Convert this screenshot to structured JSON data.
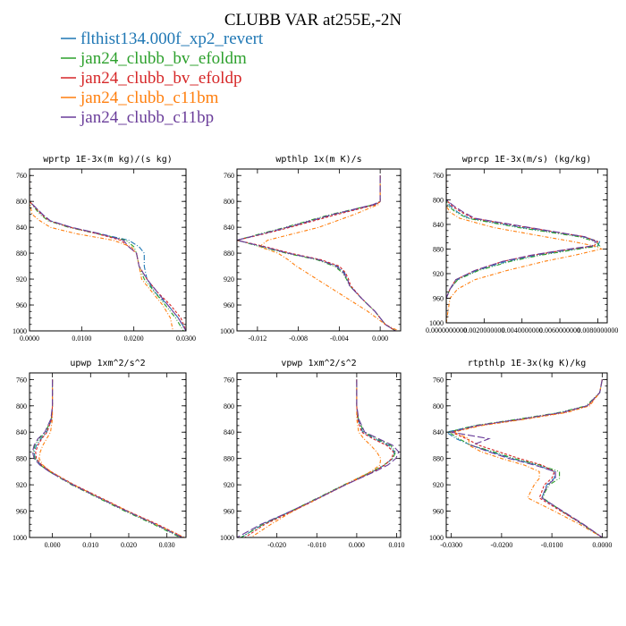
{
  "figure": {
    "title": "CLUBB VAR at255E,-2N"
  },
  "legend": [
    {
      "name": "flthist134.000f_xp2_revert",
      "color": "#1f77b4"
    },
    {
      "name": "jan24_clubb_bv_efoldm",
      "color": "#2ca02c"
    },
    {
      "name": "jan24_clubb_bv_efoldp",
      "color": "#d62728"
    },
    {
      "name": "jan24_clubb_c11bm",
      "color": "#ff7f0e"
    },
    {
      "name": "jan24_clubb_c11bp",
      "color": "#6a3d9a"
    }
  ],
  "chart_data": [
    {
      "type": "line",
      "title": "wprtp  1E-3x(m kg)/(s kg)",
      "xlabel": "",
      "ylabel": "",
      "xlim": [
        0,
        0.03
      ],
      "ylim": [
        1000,
        750
      ],
      "yticks": [
        760,
        800,
        840,
        880,
        920,
        960,
        1000
      ],
      "xticks": [
        0,
        0.01,
        0.02,
        0.03
      ],
      "xtick_labels": [
        "0.0000",
        "0.0100",
        "0.0200",
        "0.0300"
      ],
      "y": [
        760,
        800,
        820,
        830,
        840,
        850,
        860,
        870,
        880,
        900,
        920,
        940,
        960,
        980,
        1000
      ],
      "series": [
        {
          "name": "flthist134.000f_xp2_revert",
          "values": [
            0,
            0,
            0.0025,
            0.004,
            0.008,
            0.0135,
            0.019,
            0.021,
            0.022,
            0.022,
            0.0225,
            0.024,
            0.0265,
            0.0285,
            0.03
          ]
        },
        {
          "name": "jan24_clubb_bv_efoldm",
          "values": [
            0,
            0,
            0.002,
            0.0036,
            0.0075,
            0.013,
            0.0185,
            0.02,
            0.0205,
            0.021,
            0.022,
            0.024,
            0.026,
            0.028,
            0.0295
          ]
        },
        {
          "name": "jan24_clubb_bv_efoldp",
          "values": [
            0,
            0,
            0.0023,
            0.0038,
            0.0078,
            0.013,
            0.0175,
            0.019,
            0.0205,
            0.021,
            0.0225,
            0.0245,
            0.027,
            0.029,
            0.03
          ]
        },
        {
          "name": "jan24_clubb_c11bm",
          "values": [
            0,
            0,
            0.0005,
            0.002,
            0.004,
            0.009,
            0.016,
            0.0195,
            0.0205,
            0.021,
            0.0215,
            0.0235,
            0.0255,
            0.027,
            0.0275
          ]
        },
        {
          "name": "jan24_clubb_c11bp",
          "values": [
            0,
            0,
            0.0025,
            0.004,
            0.008,
            0.0135,
            0.018,
            0.019,
            0.0205,
            0.021,
            0.0225,
            0.0245,
            0.0265,
            0.0285,
            0.03
          ]
        }
      ]
    },
    {
      "type": "line",
      "title": "wpthlp  1x(m K)/s",
      "xlabel": "",
      "ylabel": "",
      "xlim": [
        -0.014,
        0.002
      ],
      "ylim": [
        1000,
        750
      ],
      "yticks": [
        760,
        800,
        840,
        880,
        920,
        960,
        1000
      ],
      "xticks": [
        -0.012,
        -0.008,
        -0.004,
        0.0
      ],
      "xtick_labels": [
        "-0.012",
        "-0.008",
        "-0.004",
        "0.000"
      ],
      "y": [
        760,
        800,
        805,
        820,
        840,
        850,
        860,
        870,
        880,
        890,
        900,
        910,
        920,
        930,
        950,
        970,
        990,
        1000
      ],
      "series": [
        {
          "name": "flthist134.000f_xp2_revert",
          "values": [
            0.0,
            0.0,
            -0.0005,
            -0.0045,
            -0.009,
            -0.0115,
            -0.014,
            -0.0115,
            -0.009,
            -0.006,
            -0.0042,
            -0.0035,
            -0.0032,
            -0.003,
            -0.0018,
            -0.0005,
            0.0005,
            0.0015
          ]
        },
        {
          "name": "jan24_clubb_bv_efoldm",
          "values": [
            0.0,
            0.0,
            -0.0006,
            -0.0048,
            -0.0093,
            -0.0117,
            -0.014,
            -0.0117,
            -0.0092,
            -0.0062,
            -0.0045,
            -0.0037,
            -0.0033,
            -0.003,
            -0.0018,
            -0.0005,
            0.0005,
            0.0015
          ]
        },
        {
          "name": "jan24_clubb_bv_efoldp",
          "values": [
            0.0,
            0.0,
            -0.0004,
            -0.0042,
            -0.0088,
            -0.0113,
            -0.014,
            -0.0112,
            -0.0088,
            -0.0058,
            -0.004,
            -0.0034,
            -0.0031,
            -0.0029,
            -0.0018,
            -0.0005,
            0.0005,
            0.0015
          ]
        },
        {
          "name": "jan24_clubb_c11bm",
          "values": [
            0.0,
            0.0,
            -0.0002,
            -0.0025,
            -0.006,
            -0.0085,
            -0.011,
            -0.0118,
            -0.01,
            -0.009,
            -0.0082,
            -0.0072,
            -0.0062,
            -0.0052,
            -0.0032,
            -0.0012,
            0.0005,
            0.0018
          ]
        },
        {
          "name": "jan24_clubb_c11bp",
          "values": [
            0.0,
            0.0,
            -0.0007,
            -0.0046,
            -0.0091,
            -0.0115,
            -0.014,
            -0.0114,
            -0.009,
            -0.006,
            -0.0043,
            -0.0036,
            -0.0032,
            -0.003,
            -0.0018,
            -0.0005,
            0.0005,
            0.0015
          ]
        }
      ]
    },
    {
      "type": "line",
      "title": "wprcp  1E-3x(m/s) (kg/kg)",
      "xlabel": "",
      "ylabel": "",
      "xlim": [
        0,
        0.0085
      ],
      "ylim": [
        1000,
        750
      ],
      "yticks": [
        760,
        800,
        840,
        880,
        920,
        960,
        1000
      ],
      "xticks": [
        0,
        0.002,
        0.004,
        0.006,
        0.008
      ],
      "xtick_labels": [
        "0.0000000000",
        "0.0020000000",
        "0.0040000000",
        "0.0060000000",
        "0.0080000000"
      ],
      "y": [
        760,
        800,
        810,
        820,
        830,
        845,
        860,
        868,
        875,
        880,
        890,
        900,
        915,
        930,
        945,
        960,
        1000
      ],
      "series": [
        {
          "name": "flthist134.000f_xp2_revert",
          "values": [
            0,
            0,
            0.0002,
            0.0006,
            0.0012,
            0.004,
            0.0072,
            0.0081,
            0.008,
            0.0068,
            0.0048,
            0.0032,
            0.0016,
            0.0006,
            0.0002,
            0,
            0
          ]
        },
        {
          "name": "jan24_clubb_bv_efoldm",
          "values": [
            0,
            0,
            0.0001,
            0.0005,
            0.0011,
            0.0038,
            0.007,
            0.0079,
            0.0081,
            0.007,
            0.005,
            0.0034,
            0.0017,
            0.0006,
            0.0002,
            0,
            0
          ]
        },
        {
          "name": "jan24_clubb_bv_efoldp",
          "values": [
            0,
            0,
            0.0003,
            0.0008,
            0.0014,
            0.0043,
            0.0073,
            0.008,
            0.0078,
            0.0066,
            0.0046,
            0.003,
            0.0015,
            0.0005,
            0.0002,
            0,
            0
          ]
        },
        {
          "name": "jan24_clubb_c11bm",
          "values": [
            0,
            0,
            0.0,
            0.0002,
            0.0007,
            0.0025,
            0.0052,
            0.0067,
            0.0078,
            0.0082,
            0.0068,
            0.0052,
            0.0032,
            0.0015,
            0.0006,
            0.0002,
            0
          ]
        },
        {
          "name": "jan24_clubb_c11bp",
          "values": [
            0,
            0,
            0.0004,
            0.0009,
            0.0015,
            0.0044,
            0.0073,
            0.0079,
            0.0077,
            0.0065,
            0.0045,
            0.003,
            0.0015,
            0.0005,
            0.0002,
            0,
            0
          ]
        }
      ]
    },
    {
      "type": "line",
      "title": "upwp  1xm^2/s^2",
      "xlabel": "",
      "ylabel": "",
      "xlim": [
        -0.006,
        0.035
      ],
      "ylim": [
        1000,
        750
      ],
      "yticks": [
        760,
        800,
        840,
        880,
        920,
        960,
        1000
      ],
      "xticks": [
        0,
        0.01,
        0.02,
        0.03
      ],
      "xtick_labels": [
        "0.000",
        "0.010",
        "0.020",
        "0.030"
      ],
      "y": [
        760,
        800,
        820,
        840,
        850,
        860,
        870,
        880,
        890,
        900,
        920,
        940,
        960,
        980,
        1000
      ],
      "series": [
        {
          "name": "flthist134.000f_xp2_revert",
          "values": [
            0,
            0,
            -0.0002,
            -0.0015,
            -0.003,
            -0.0042,
            -0.0048,
            -0.0045,
            -0.003,
            -0.0005,
            0.0055,
            0.0125,
            0.0195,
            0.027,
            0.034
          ]
        },
        {
          "name": "jan24_clubb_bv_efoldm",
          "values": [
            0,
            0,
            -0.0003,
            -0.0018,
            -0.0035,
            -0.0046,
            -0.005,
            -0.0046,
            -0.0032,
            -0.0008,
            0.005,
            0.012,
            0.019,
            0.0265,
            0.0335
          ]
        },
        {
          "name": "jan24_clubb_bv_efoldp",
          "values": [
            0,
            0,
            -0.0002,
            -0.0014,
            -0.0028,
            -0.0038,
            -0.0044,
            -0.0042,
            -0.0028,
            -0.0004,
            0.0057,
            0.0128,
            0.0198,
            0.0275,
            0.0345
          ]
        },
        {
          "name": "jan24_clubb_c11bm",
          "values": [
            0,
            0,
            0.0,
            -0.0005,
            -0.0015,
            -0.0025,
            -0.0032,
            -0.0035,
            -0.0025,
            -0.0004,
            0.0055,
            0.0125,
            0.0197,
            0.0272,
            0.0345
          ]
        },
        {
          "name": "jan24_clubb_c11bp",
          "values": [
            0,
            0,
            -0.0004,
            -0.002,
            -0.0038,
            -0.0048,
            -0.0052,
            -0.0048,
            -0.0033,
            -0.0008,
            0.0053,
            0.0123,
            0.0195,
            0.027,
            0.034
          ]
        }
      ]
    },
    {
      "type": "line",
      "title": "vpwp  1xm^2/s^2",
      "xlabel": "",
      "ylabel": "",
      "xlim": [
        -0.03,
        0.011
      ],
      "ylim": [
        1000,
        750
      ],
      "yticks": [
        760,
        800,
        840,
        880,
        920,
        960,
        1000
      ],
      "xticks": [
        -0.02,
        -0.01,
        0.0,
        0.01
      ],
      "xtick_labels": [
        "-0.020",
        "-0.010",
        "0.000",
        "0.010"
      ],
      "y": [
        760,
        800,
        820,
        840,
        850,
        860,
        870,
        880,
        890,
        900,
        920,
        940,
        960,
        980,
        1000
      ],
      "series": [
        {
          "name": "flthist134.000f_xp2_revert",
          "values": [
            0,
            0,
            0.0003,
            0.0015,
            0.0045,
            0.008,
            0.0095,
            0.009,
            0.007,
            0.004,
            -0.003,
            -0.0095,
            -0.0165,
            -0.0235,
            -0.029
          ]
        },
        {
          "name": "jan24_clubb_bv_efoldm",
          "values": [
            0,
            0,
            0.0004,
            0.0018,
            0.005,
            0.0085,
            0.0098,
            0.009,
            0.0068,
            0.0038,
            -0.0032,
            -0.0098,
            -0.0165,
            -0.0235,
            -0.029
          ]
        },
        {
          "name": "jan24_clubb_bv_efoldp",
          "values": [
            0,
            0,
            0.0002,
            0.0012,
            0.004,
            0.0075,
            0.0092,
            0.0088,
            0.007,
            0.0042,
            -0.0028,
            -0.0093,
            -0.016,
            -0.023,
            -0.028
          ]
        },
        {
          "name": "jan24_clubb_c11bm",
          "values": [
            0,
            0,
            0.0,
            0.0005,
            0.0018,
            0.0035,
            0.005,
            0.006,
            0.0058,
            0.0035,
            -0.003,
            -0.0095,
            -0.016,
            -0.0215,
            -0.0265
          ]
        },
        {
          "name": "jan24_clubb_c11bp",
          "values": [
            0,
            0,
            0.0005,
            0.002,
            0.0055,
            0.009,
            0.0105,
            0.0098,
            0.0078,
            0.0045,
            -0.0028,
            -0.0095,
            -0.0165,
            -0.024,
            -0.03
          ]
        }
      ]
    },
    {
      "type": "line",
      "title": "rtpthlp  1E-3x(kg K)/kg",
      "xlabel": "",
      "ylabel": "",
      "xlim": [
        -0.031,
        0.001
      ],
      "ylim": [
        1000,
        750
      ],
      "yticks": [
        760,
        800,
        840,
        880,
        920,
        960,
        1000
      ],
      "xticks": [
        -0.03,
        -0.02,
        -0.01,
        0.0
      ],
      "xtick_labels": [
        "-0.0300",
        "-0.0200",
        "-0.0100",
        "0.0000"
      ],
      "y": [
        760,
        780,
        800,
        810,
        820,
        830,
        840,
        850,
        860,
        870,
        880,
        890,
        900,
        910,
        920,
        930,
        940,
        960,
        980,
        1000
      ],
      "series": [
        {
          "name": "flthist134.000f_xp2_revert",
          "values": [
            0.0,
            -0.0005,
            -0.003,
            -0.008,
            -0.016,
            -0.025,
            -0.031,
            -0.029,
            -0.026,
            -0.022,
            -0.018,
            -0.013,
            -0.0095,
            -0.0095,
            -0.011,
            -0.0115,
            -0.012,
            -0.008,
            -0.004,
            0.0
          ]
        },
        {
          "name": "jan24_clubb_bv_efoldm",
          "values": [
            0.0,
            -0.0005,
            -0.0032,
            -0.0085,
            -0.0165,
            -0.0255,
            -0.0305,
            -0.0285,
            -0.026,
            -0.0215,
            -0.0175,
            -0.0125,
            -0.0085,
            -0.0085,
            -0.0105,
            -0.0113,
            -0.0118,
            -0.008,
            -0.0038,
            0.0
          ]
        },
        {
          "name": "jan24_clubb_bv_efoldp",
          "values": [
            0.0,
            -0.0005,
            -0.0028,
            -0.0075,
            -0.0155,
            -0.0245,
            -0.03,
            -0.027,
            -0.0245,
            -0.0205,
            -0.0165,
            -0.012,
            -0.0095,
            -0.01,
            -0.0115,
            -0.012,
            -0.0125,
            -0.0082,
            -0.0038,
            0.0
          ]
        },
        {
          "name": "jan24_clubb_c11bm",
          "values": [
            0.0,
            -0.0005,
            -0.0025,
            -0.007,
            -0.015,
            -0.024,
            -0.0295,
            -0.0265,
            -0.0265,
            -0.024,
            -0.02,
            -0.0155,
            -0.0125,
            -0.0125,
            -0.0135,
            -0.0142,
            -0.0148,
            -0.0095,
            -0.0045,
            0.0
          ]
        },
        {
          "name": "jan24_clubb_c11bp",
          "values": [
            0.0,
            -0.0005,
            -0.003,
            -0.008,
            -0.016,
            -0.025,
            -0.03,
            -0.0225,
            -0.026,
            -0.0225,
            -0.0185,
            -0.0135,
            -0.0093,
            -0.0093,
            -0.0108,
            -0.0115,
            -0.012,
            -0.0078,
            -0.0037,
            0.0
          ]
        }
      ]
    }
  ]
}
